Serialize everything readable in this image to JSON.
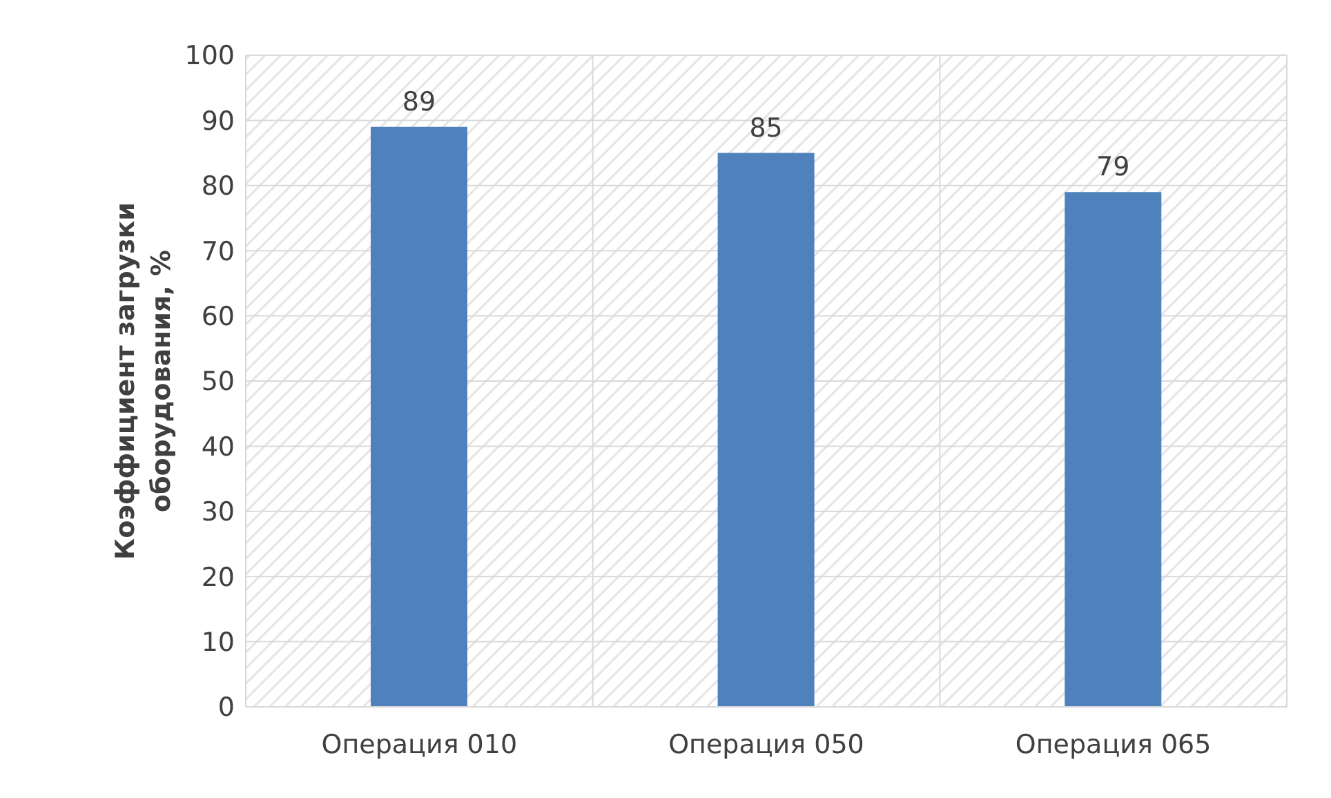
{
  "chart_data": {
    "type": "bar",
    "ylabel": "Коэффициент загрузки оборудования, %",
    "categories": [
      "Операция 010",
      "Операция 050",
      "Операция 065"
    ],
    "values": [
      89,
      85,
      79
    ],
    "color": "#4f81bd",
    "ylim": [
      0,
      100
    ],
    "yticks": [
      0,
      10,
      20,
      30,
      40,
      50,
      60,
      70,
      80,
      90,
      100
    ],
    "grid": true,
    "data_labels": true
  }
}
